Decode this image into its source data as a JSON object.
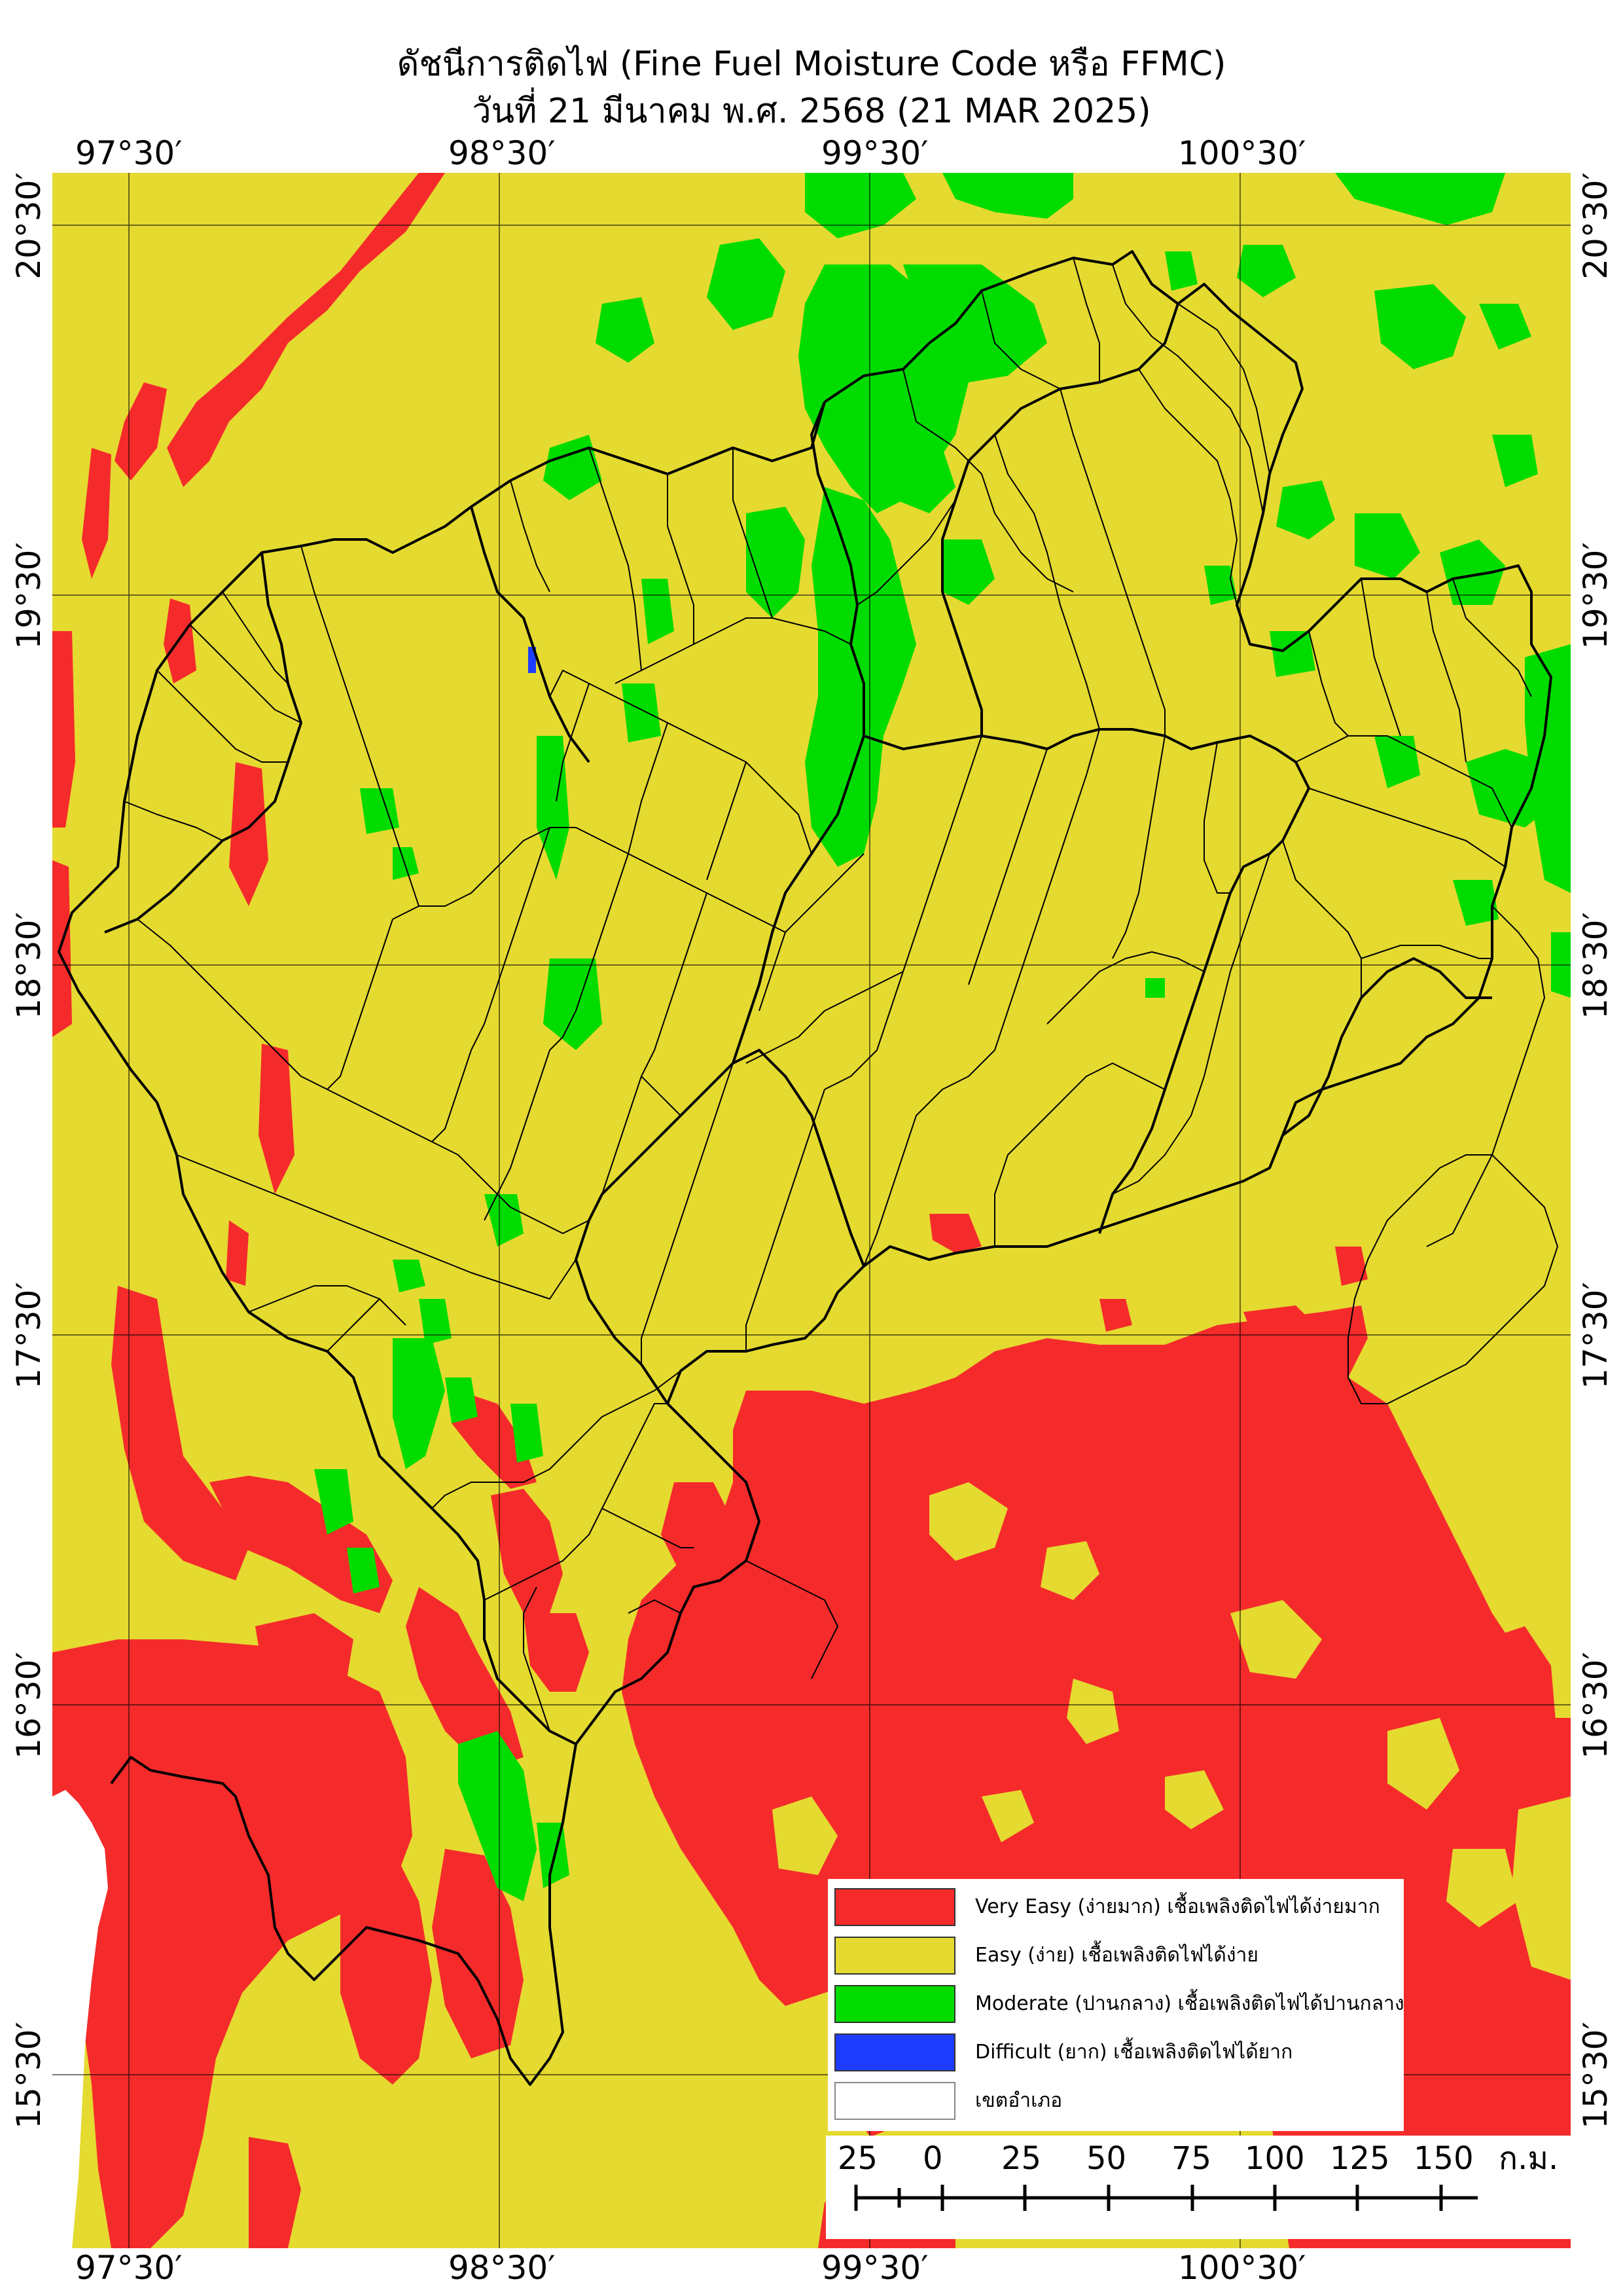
{
  "title_line1": "ดัชนีการติดไฟ (Fine Fuel Moisture Code หรือ FFMC)",
  "title_line2": "วันที่ 21 มีนาคม พ.ศ. 2568 (21 MAR 2025)",
  "graticule": {
    "longitudes": [
      "97°30′",
      "98°30′",
      "99°30′",
      "100°30′"
    ],
    "latitudes": [
      "20°30′",
      "19°30′",
      "18°30′",
      "17°30′",
      "16°30′",
      "15°30′"
    ]
  },
  "legend": {
    "items": [
      {
        "label": "Very Easy (ง่ายมาก) เชื้อเพลิงติดไฟได้ง่ายมาก",
        "color": "#f52b2b"
      },
      {
        "label": "Easy (ง่าย) เชื้อเพลิงติดไฟได้ง่าย",
        "color": "#e5da30"
      },
      {
        "label": "Moderate (ปานกลาง) เชื้อเพลิงติดไฟได้ปานกลาง",
        "color": "#00dc00"
      },
      {
        "label": "Difficult (ยาก) เชื้อเพลิงติดไฟได้ยาก",
        "color": "#1e3cff"
      },
      {
        "label": "เขตอำเภอ",
        "color": "#ffffff"
      }
    ]
  },
  "scale": {
    "ticks": [
      "25",
      "0",
      "25",
      "50",
      "75",
      "100",
      "125",
      "150"
    ],
    "unit": "ก.ม."
  },
  "colors": {
    "very_easy": "#f52b2b",
    "easy": "#e5da30",
    "moderate": "#00dc00",
    "difficult": "#1e3cff",
    "boundary": "#000000",
    "sea": "#ffffff"
  }
}
